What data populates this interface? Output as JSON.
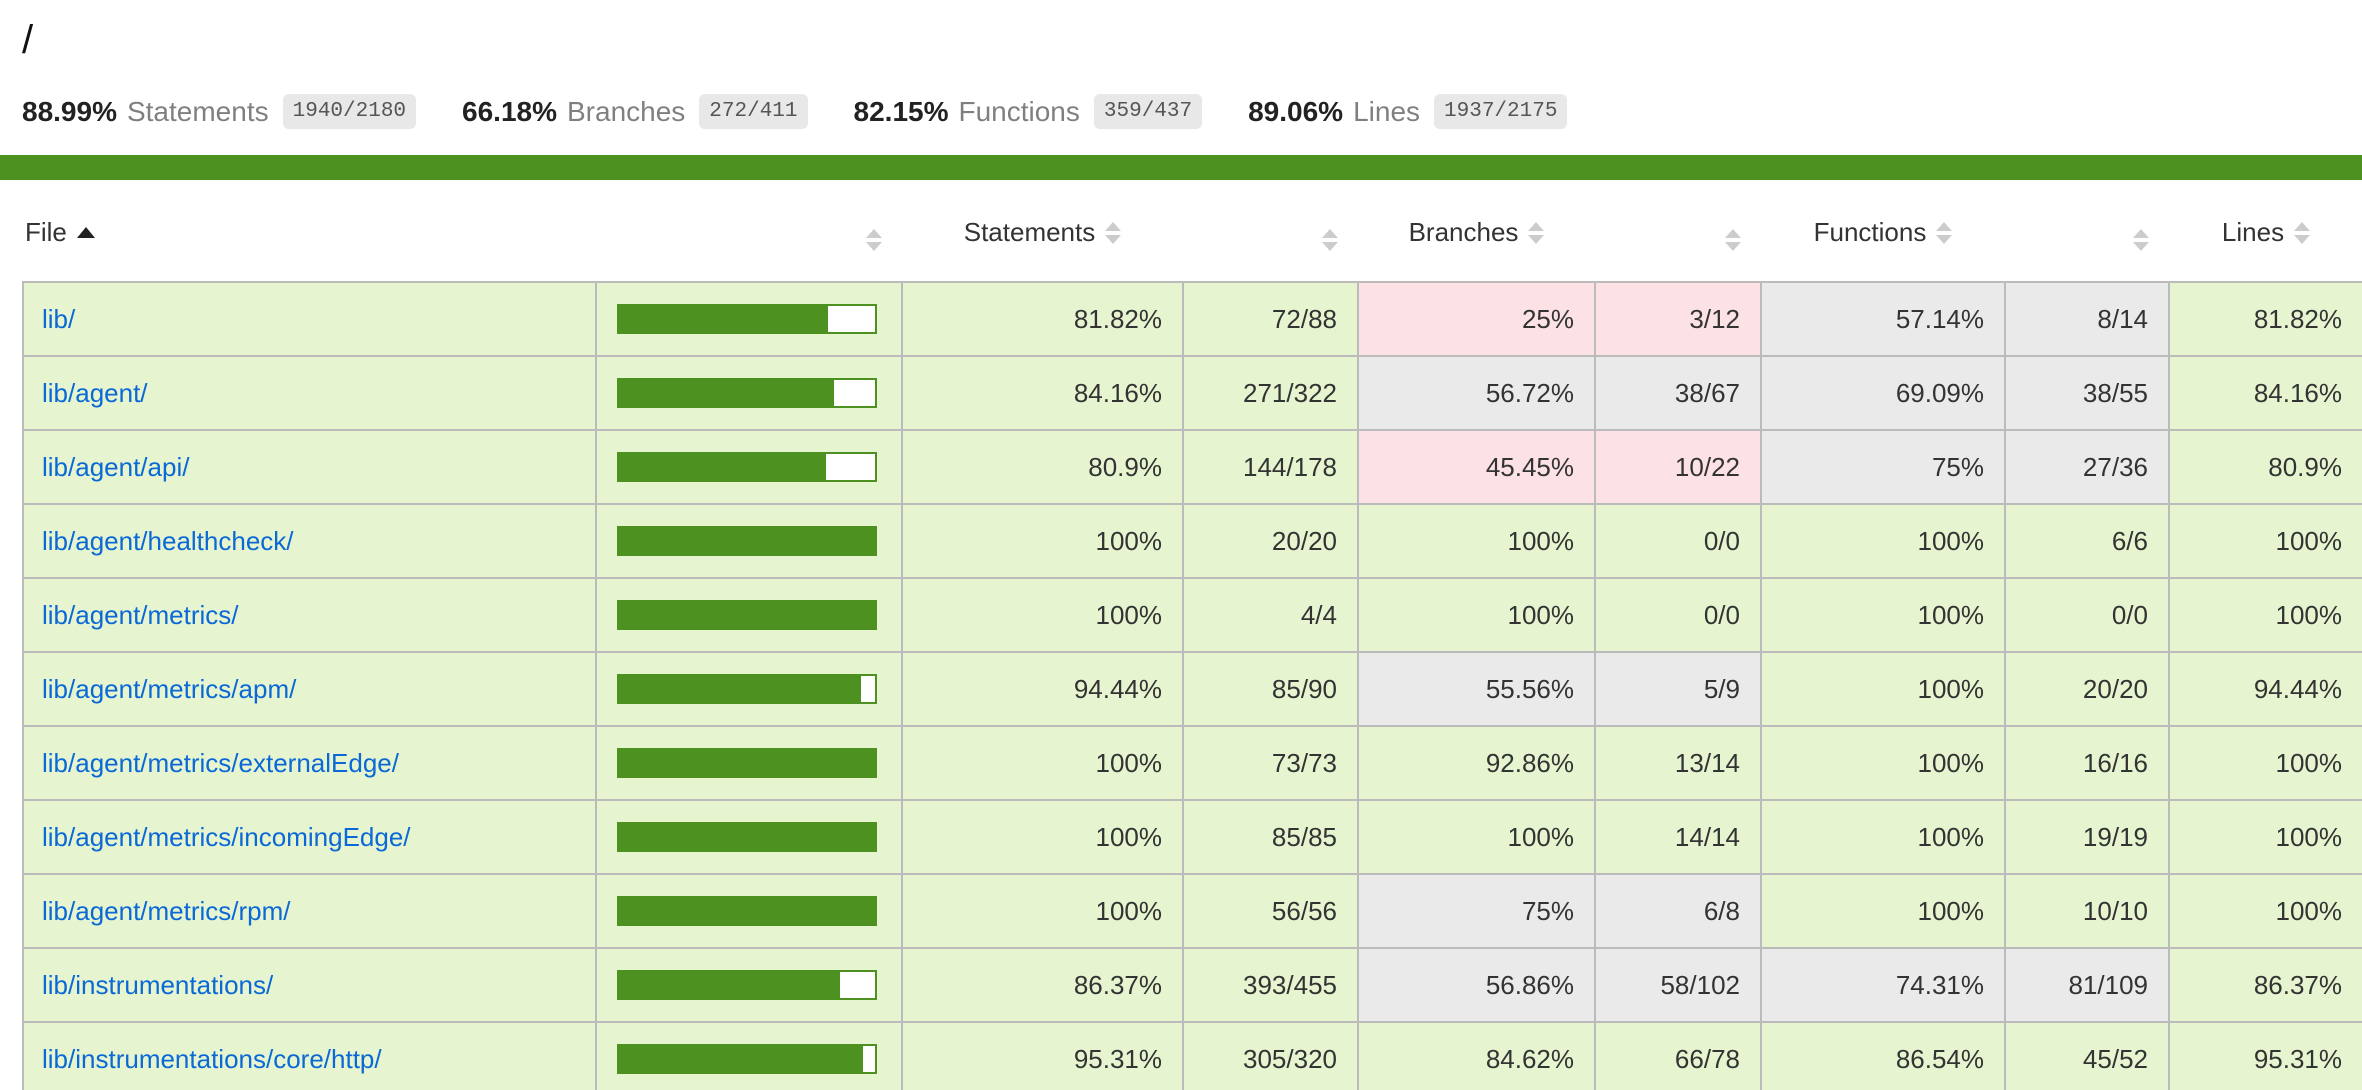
{
  "page": {
    "title": "/"
  },
  "summary": [
    {
      "pct": "88.99%",
      "label": "Statements",
      "fraction": "1940/2180"
    },
    {
      "pct": "66.18%",
      "label": "Branches",
      "fraction": "272/411"
    },
    {
      "pct": "82.15%",
      "label": "Functions",
      "fraction": "359/437"
    },
    {
      "pct": "89.06%",
      "label": "Lines",
      "fraction": "1937/2175"
    }
  ],
  "colors": {
    "accent_green": "#4d9221",
    "high_bg": "#e6f5d0",
    "medium_bg": "#eaeaea",
    "low_bg": "#fce1e5",
    "link_blue": "#0a69d6",
    "fraction_badge_bg": "#e8e8e8",
    "table_border": "#bbbbbb"
  },
  "table": {
    "columns": {
      "file": "File",
      "statements": "Statements",
      "branches": "Branches",
      "functions": "Functions",
      "lines": "Lines"
    },
    "sort": {
      "active_column": "file",
      "direction": "ascending"
    },
    "rows": [
      {
        "file": "lib/",
        "bar_pct": 81.82,
        "statements_pct": "81.82%",
        "statements_raw": "72/88",
        "branches_pct": "25%",
        "branches_raw": "3/12",
        "functions_pct": "57.14%",
        "functions_raw": "8/14",
        "lines_pct": "81.82%",
        "levels": {
          "statements": "high",
          "branches": "low",
          "functions": "medium",
          "lines": "high"
        }
      },
      {
        "file": "lib/agent/",
        "bar_pct": 84.16,
        "statements_pct": "84.16%",
        "statements_raw": "271/322",
        "branches_pct": "56.72%",
        "branches_raw": "38/67",
        "functions_pct": "69.09%",
        "functions_raw": "38/55",
        "lines_pct": "84.16%",
        "levels": {
          "statements": "high",
          "branches": "medium",
          "functions": "medium",
          "lines": "high"
        }
      },
      {
        "file": "lib/agent/api/",
        "bar_pct": 80.9,
        "statements_pct": "80.9%",
        "statements_raw": "144/178",
        "branches_pct": "45.45%",
        "branches_raw": "10/22",
        "functions_pct": "75%",
        "functions_raw": "27/36",
        "lines_pct": "80.9%",
        "levels": {
          "statements": "high",
          "branches": "low",
          "functions": "medium",
          "lines": "high"
        }
      },
      {
        "file": "lib/agent/healthcheck/",
        "bar_pct": 100,
        "statements_pct": "100%",
        "statements_raw": "20/20",
        "branches_pct": "100%",
        "branches_raw": "0/0",
        "functions_pct": "100%",
        "functions_raw": "6/6",
        "lines_pct": "100%",
        "levels": {
          "statements": "high",
          "branches": "high",
          "functions": "high",
          "lines": "high"
        }
      },
      {
        "file": "lib/agent/metrics/",
        "bar_pct": 100,
        "statements_pct": "100%",
        "statements_raw": "4/4",
        "branches_pct": "100%",
        "branches_raw": "0/0",
        "functions_pct": "100%",
        "functions_raw": "0/0",
        "lines_pct": "100%",
        "levels": {
          "statements": "high",
          "branches": "high",
          "functions": "high",
          "lines": "high"
        }
      },
      {
        "file": "lib/agent/metrics/apm/",
        "bar_pct": 94.44,
        "statements_pct": "94.44%",
        "statements_raw": "85/90",
        "branches_pct": "55.56%",
        "branches_raw": "5/9",
        "functions_pct": "100%",
        "functions_raw": "20/20",
        "lines_pct": "94.44%",
        "levels": {
          "statements": "high",
          "branches": "medium",
          "functions": "high",
          "lines": "high"
        }
      },
      {
        "file": "lib/agent/metrics/externalEdge/",
        "bar_pct": 100,
        "statements_pct": "100%",
        "statements_raw": "73/73",
        "branches_pct": "92.86%",
        "branches_raw": "13/14",
        "functions_pct": "100%",
        "functions_raw": "16/16",
        "lines_pct": "100%",
        "levels": {
          "statements": "high",
          "branches": "high",
          "functions": "high",
          "lines": "high"
        }
      },
      {
        "file": "lib/agent/metrics/incomingEdge/",
        "bar_pct": 100,
        "statements_pct": "100%",
        "statements_raw": "85/85",
        "branches_pct": "100%",
        "branches_raw": "14/14",
        "functions_pct": "100%",
        "functions_raw": "19/19",
        "lines_pct": "100%",
        "levels": {
          "statements": "high",
          "branches": "high",
          "functions": "high",
          "lines": "high"
        }
      },
      {
        "file": "lib/agent/metrics/rpm/",
        "bar_pct": 100,
        "statements_pct": "100%",
        "statements_raw": "56/56",
        "branches_pct": "75%",
        "branches_raw": "6/8",
        "functions_pct": "100%",
        "functions_raw": "10/10",
        "lines_pct": "100%",
        "levels": {
          "statements": "high",
          "branches": "medium",
          "functions": "high",
          "lines": "high"
        }
      },
      {
        "file": "lib/instrumentations/",
        "bar_pct": 86.37,
        "statements_pct": "86.37%",
        "statements_raw": "393/455",
        "branches_pct": "56.86%",
        "branches_raw": "58/102",
        "functions_pct": "74.31%",
        "functions_raw": "81/109",
        "lines_pct": "86.37%",
        "levels": {
          "statements": "high",
          "branches": "medium",
          "functions": "medium",
          "lines": "high"
        }
      },
      {
        "file": "lib/instrumentations/core/http/",
        "bar_pct": 95.31,
        "statements_pct": "95.31%",
        "statements_raw": "305/320",
        "branches_pct": "84.62%",
        "branches_raw": "66/78",
        "functions_pct": "86.54%",
        "functions_raw": "45/52",
        "lines_pct": "95.31%",
        "levels": {
          "statements": "high",
          "branches": "high",
          "functions": "high",
          "lines": "high"
        }
      }
    ]
  }
}
